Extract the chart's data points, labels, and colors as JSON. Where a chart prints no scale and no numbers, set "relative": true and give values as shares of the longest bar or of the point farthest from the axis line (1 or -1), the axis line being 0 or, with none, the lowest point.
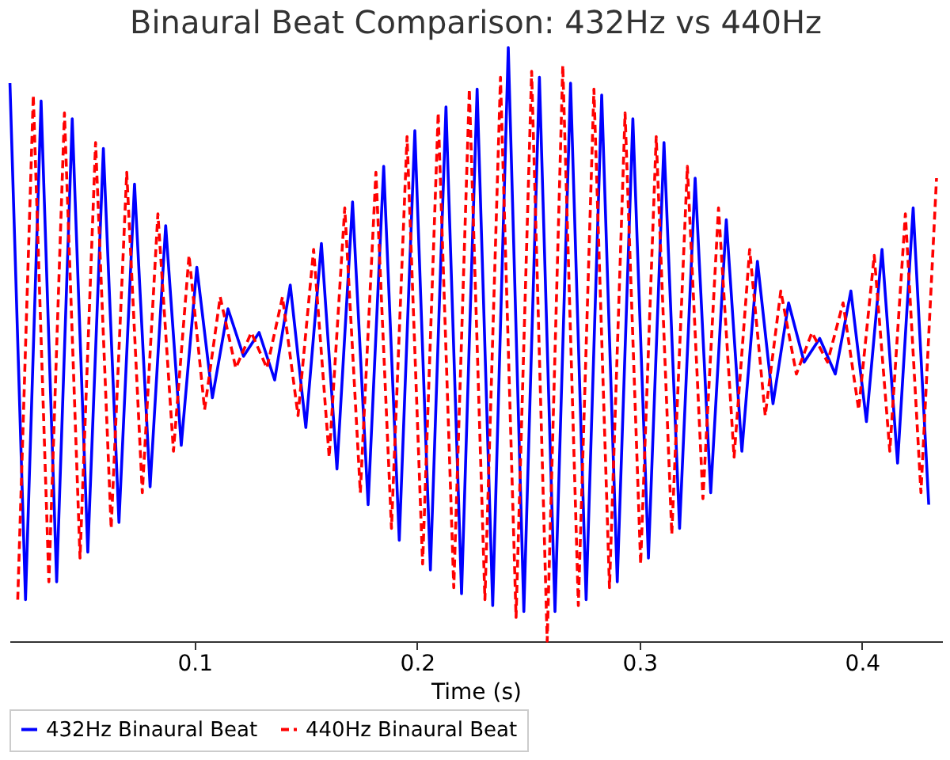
{
  "chart_data": {
    "type": "line",
    "title": "Binaural Beat Comparison: 432Hz vs 440Hz",
    "xlabel": "Time (s)",
    "relative": true,
    "xlim": [
      0.0168,
      0.436
    ],
    "xticks": [
      0.1,
      0.2,
      0.3,
      0.4
    ],
    "grid": false,
    "legend": "bottom",
    "marker": "none",
    "series": [
      {
        "name": "432Hz Binaural Beat",
        "color": "#0000ff",
        "line_style": "solid",
        "x": [
          0.017,
          0.024,
          0.031,
          0.038,
          0.045,
          0.052,
          0.059,
          0.066,
          0.073,
          0.08,
          0.087,
          0.094,
          0.101,
          0.108,
          0.115,
          0.122,
          0.129,
          0.136,
          0.143,
          0.15,
          0.157,
          0.164,
          0.171,
          0.178,
          0.185,
          0.192,
          0.199,
          0.206,
          0.213,
          0.22,
          0.227,
          0.234,
          0.241,
          0.248,
          0.255,
          0.262,
          0.269,
          0.276,
          0.283,
          0.29,
          0.297,
          0.304,
          0.311,
          0.318,
          0.325,
          0.332,
          0.339,
          0.346,
          0.353,
          0.36,
          0.367,
          0.374,
          0.381,
          0.388,
          0.395,
          0.402,
          0.409,
          0.416,
          0.423,
          0.43
        ],
        "values": [
          0.94,
          0.07,
          0.91,
          0.1,
          0.88,
          0.15,
          0.83,
          0.2,
          0.77,
          0.26,
          0.7,
          0.33,
          0.63,
          0.41,
          0.56,
          0.48,
          0.52,
          0.44,
          0.6,
          0.36,
          0.67,
          0.29,
          0.74,
          0.23,
          0.8,
          0.17,
          0.86,
          0.12,
          0.9,
          0.08,
          0.93,
          0.06,
          1.0,
          0.05,
          0.95,
          0.05,
          0.94,
          0.07,
          0.92,
          0.1,
          0.88,
          0.14,
          0.84,
          0.19,
          0.78,
          0.25,
          0.71,
          0.32,
          0.64,
          0.4,
          0.57,
          0.47,
          0.51,
          0.45,
          0.59,
          0.37,
          0.66,
          0.3,
          0.73,
          0.23
        ]
      },
      {
        "name": "440Hz Binaural Beat",
        "color": "#ff0000",
        "line_style": "dashed",
        "x": [
          0.0205,
          0.0275,
          0.0345,
          0.0415,
          0.0485,
          0.0555,
          0.0625,
          0.0695,
          0.0765,
          0.0835,
          0.0905,
          0.0975,
          0.1045,
          0.1115,
          0.1185,
          0.1255,
          0.1325,
          0.1395,
          0.1465,
          0.1535,
          0.1605,
          0.1675,
          0.1745,
          0.1815,
          0.1885,
          0.1955,
          0.2025,
          0.2095,
          0.2165,
          0.2235,
          0.2305,
          0.2375,
          0.2445,
          0.2515,
          0.2585,
          0.2655,
          0.2725,
          0.2795,
          0.2865,
          0.2935,
          0.3005,
          0.3075,
          0.3145,
          0.3215,
          0.3285,
          0.3355,
          0.3425,
          0.3495,
          0.3565,
          0.3635,
          0.3705,
          0.3775,
          0.3845,
          0.3915,
          0.3985,
          0.4055,
          0.4125,
          0.4195,
          0.4265,
          0.4335
        ],
        "values": [
          0.07,
          0.92,
          0.1,
          0.89,
          0.14,
          0.84,
          0.19,
          0.79,
          0.25,
          0.72,
          0.32,
          0.65,
          0.39,
          0.58,
          0.46,
          0.52,
          0.46,
          0.58,
          0.38,
          0.66,
          0.31,
          0.73,
          0.25,
          0.79,
          0.19,
          0.85,
          0.13,
          0.89,
          0.09,
          0.93,
          0.07,
          0.95,
          0.04,
          0.96,
          0.0,
          0.97,
          0.06,
          0.93,
          0.09,
          0.89,
          0.13,
          0.85,
          0.18,
          0.8,
          0.24,
          0.73,
          0.31,
          0.66,
          0.38,
          0.59,
          0.45,
          0.52,
          0.47,
          0.57,
          0.39,
          0.65,
          0.32,
          0.72,
          0.25,
          0.78
        ]
      }
    ]
  }
}
